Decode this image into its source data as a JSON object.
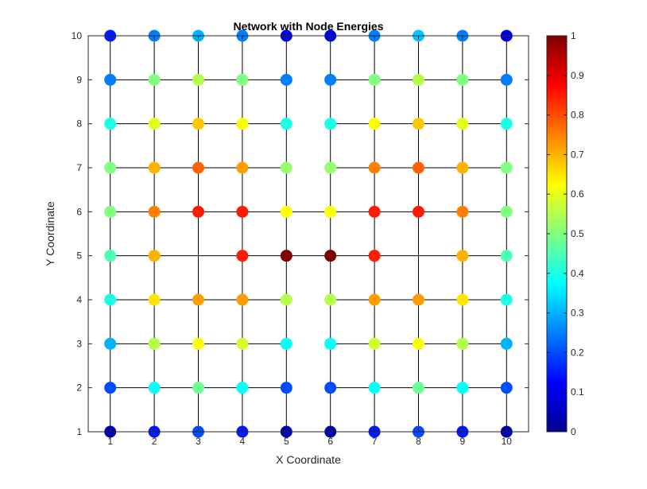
{
  "chart_data": {
    "type": "scatter",
    "title": "Network with Node Energies",
    "xlabel": "X Coordinate",
    "ylabel": "Y Coordinate",
    "xlim": [
      0.5,
      10.5
    ],
    "ylim": [
      1,
      10
    ],
    "xticks": [
      1,
      2,
      3,
      4,
      5,
      6,
      7,
      8,
      9,
      10
    ],
    "yticks": [
      1,
      2,
      3,
      4,
      5,
      6,
      7,
      8,
      9,
      10
    ],
    "grid": false,
    "colormap": "jet",
    "colorbar": {
      "range": [
        0,
        1
      ],
      "ticks": [
        "0",
        "0.1",
        "0.2",
        "0.3",
        "0.4",
        "0.5",
        "0.6",
        "0.7",
        "0.8",
        "0.9",
        "1"
      ]
    },
    "energy_rows_top_to_bottom": [
      [
        0.15,
        0.25,
        0.3,
        0.25,
        0.1,
        0.1,
        0.25,
        0.32,
        0.25,
        0.1
      ],
      [
        0.25,
        0.5,
        0.55,
        0.5,
        0.25,
        0.25,
        0.5,
        0.55,
        0.5,
        0.25
      ],
      [
        0.4,
        0.6,
        0.68,
        0.62,
        0.4,
        0.4,
        0.62,
        0.68,
        0.6,
        0.4
      ],
      [
        0.5,
        0.7,
        0.78,
        0.72,
        0.52,
        0.52,
        0.75,
        0.78,
        0.7,
        0.5
      ],
      [
        0.5,
        0.75,
        0.85,
        0.85,
        0.62,
        0.62,
        0.85,
        0.85,
        0.75,
        0.5
      ],
      [
        0.45,
        0.7,
        null,
        0.85,
        1.0,
        1.0,
        0.85,
        null,
        0.7,
        0.45
      ],
      [
        0.4,
        0.65,
        0.72,
        0.72,
        0.55,
        0.55,
        0.72,
        0.72,
        0.65,
        0.4
      ],
      [
        0.3,
        0.55,
        0.62,
        0.58,
        0.38,
        0.38,
        0.58,
        0.62,
        0.55,
        0.3
      ],
      [
        0.2,
        0.38,
        0.48,
        0.38,
        0.2,
        0.2,
        0.38,
        0.48,
        0.38,
        0.2
      ],
      [
        0.05,
        0.15,
        0.2,
        0.15,
        0.05,
        0.05,
        0.15,
        0.2,
        0.15,
        0.05
      ]
    ],
    "edges": {
      "vertical_columns": [
        1,
        2,
        3,
        4,
        5,
        6,
        7,
        8,
        9,
        10
      ],
      "horizontal_segments": [
        {
          "y": 10,
          "from": 1,
          "to": 5
        },
        {
          "y": 10,
          "from": 6,
          "to": 10
        },
        {
          "y": 9,
          "from": 1,
          "to": 5
        },
        {
          "y": 9,
          "from": 6,
          "to": 10
        },
        {
          "y": 8,
          "from": 1,
          "to": 5
        },
        {
          "y": 8,
          "from": 6,
          "to": 10
        },
        {
          "y": 7,
          "from": 1,
          "to": 5
        },
        {
          "y": 7,
          "from": 6,
          "to": 10
        },
        {
          "y": 6,
          "from": 1,
          "to": 10
        },
        {
          "y": 5,
          "from": 1,
          "to": 10
        },
        {
          "y": 4,
          "from": 1,
          "to": 5
        },
        {
          "y": 4,
          "from": 6,
          "to": 10
        },
        {
          "y": 3,
          "from": 1,
          "to": 5
        },
        {
          "y": 3,
          "from": 6,
          "to": 10
        },
        {
          "y": 2,
          "from": 1,
          "to": 5
        },
        {
          "y": 2,
          "from": 6,
          "to": 10
        },
        {
          "y": 1,
          "from": 1,
          "to": 5
        },
        {
          "y": 1,
          "from": 6,
          "to": 10
        }
      ]
    }
  }
}
